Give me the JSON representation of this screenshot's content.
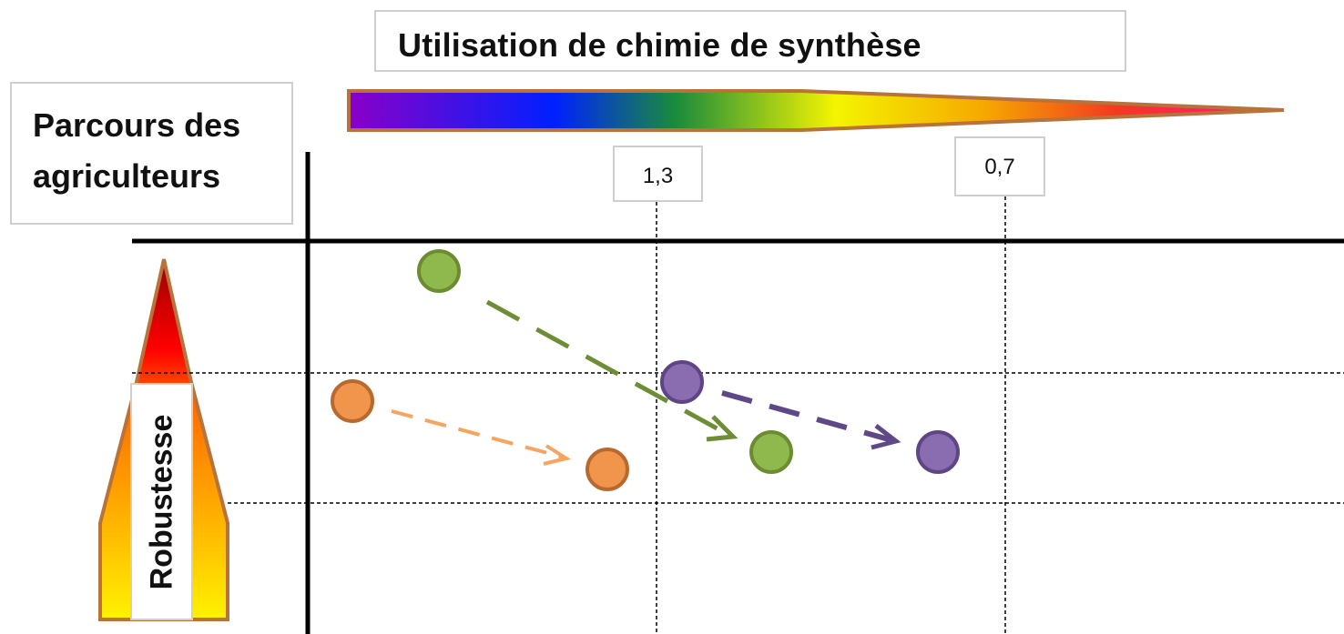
{
  "title": "Utilisation de chimie de synthèse",
  "side_title": "Parcours des agriculteurs",
  "x_ticks": [
    "1,3",
    "0,7"
  ],
  "y_label": "Robustesse",
  "colors": {
    "green": "#8fb84d",
    "green_stroke": "#6c8c32",
    "orange": "#f0954b",
    "orange_stroke": "#b86a2e",
    "purple": "#8a6cb0",
    "purple_stroke": "#5e4585",
    "green_arrow": "#6d8e36",
    "orange_arrow": "#f5a560",
    "purple_arrow": "#5f4887",
    "arrow_border": "#b8733a"
  },
  "icons": [
    "gradient-arrow-horizontal",
    "gradient-arrow-vertical"
  ]
}
